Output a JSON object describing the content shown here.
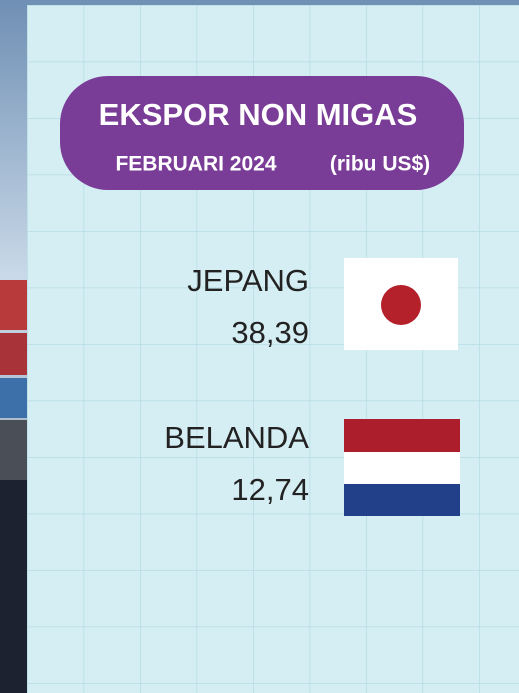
{
  "header": {
    "title": "EKSPOR NON MIGAS",
    "subtitle": "FEBRUARI 2024",
    "unit": "(ribu US$)"
  },
  "items": [
    {
      "country": "JEPANG",
      "value": "38,39"
    },
    {
      "country": "BELANDA",
      "value": "12,74"
    }
  ]
}
